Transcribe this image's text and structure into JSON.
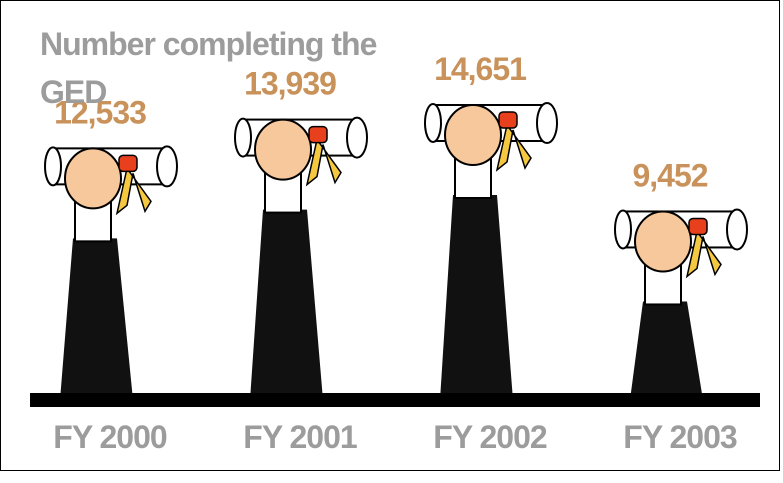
{
  "chart_data": {
    "type": "pictograph",
    "title": "Number completing the GED",
    "categories": [
      "FY 2000",
      "FY 2001",
      "FY 2002",
      "FY 2003"
    ],
    "values": [
      12533,
      13939,
      14651,
      9452
    ],
    "value_labels": [
      "12,533",
      "13,939",
      "14,651",
      "9,452"
    ]
  }
}
